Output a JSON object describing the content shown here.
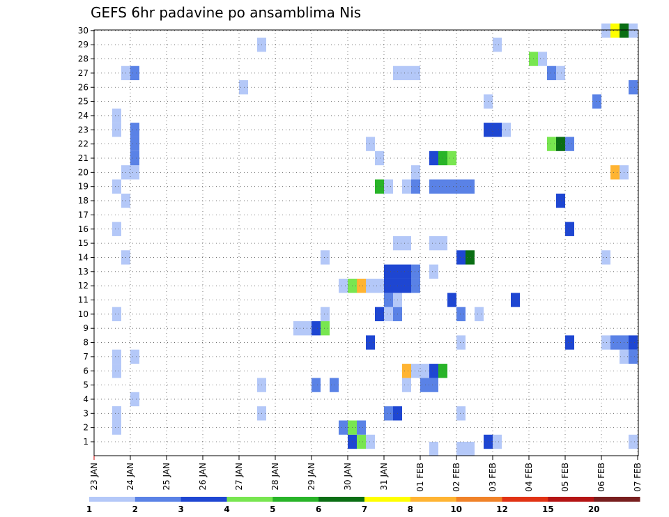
{
  "chart_data": {
    "type": "heatmap",
    "title": "GEFS 6hr padavine po ansamblima Nis",
    "xlabel": "",
    "ylabel": "",
    "x_ticks": [
      "23 JAN",
      "24 JAN",
      "25 JAN",
      "26 JAN",
      "27 JAN",
      "28 JAN",
      "29 JAN",
      "30 JAN",
      "31 JAN",
      "01 FEB",
      "02 FEB",
      "03 FEB",
      "04 FEB",
      "05 FEB",
      "06 FEB",
      "07 FEB"
    ],
    "y_ticks": [
      "1",
      "2",
      "3",
      "4",
      "5",
      "6",
      "7",
      "8",
      "9",
      "10",
      "11",
      "12",
      "13",
      "14",
      "15",
      "16",
      "17",
      "18",
      "19",
      "20",
      "21",
      "22",
      "23",
      "24",
      "25",
      "26",
      "27",
      "28",
      "29",
      "30"
    ],
    "ylim": [
      1,
      30
    ],
    "grid": true,
    "colorbar": {
      "labels": [
        "1",
        "2",
        "3",
        "4",
        "5",
        "6",
        "7",
        "8",
        "10",
        "12",
        "15",
        "20"
      ],
      "colors": [
        "#b4c8f8",
        "#5a82e6",
        "#1e46d2",
        "#78e650",
        "#28b428",
        "#0a6e14",
        "#ffff00",
        "#ffb432",
        "#f08228",
        "#e13214",
        "#b41414",
        "#781e1e"
      ]
    },
    "units_note": "x values in days after 23 JAN 00Z (6-hour steps); y = ensemble member; c = colour class index",
    "cells": [
      {
        "x": 0.625,
        "y": 2,
        "c": 0
      },
      {
        "x": 0.625,
        "y": 3,
        "c": 0
      },
      {
        "x": 0.625,
        "y": 3,
        "c": 0
      },
      {
        "x": 0.625,
        "y": 6,
        "c": 0
      },
      {
        "x": 0.625,
        "y": 7,
        "c": 0
      },
      {
        "x": 0.625,
        "y": 10,
        "c": 0
      },
      {
        "x": 0.625,
        "y": 16,
        "c": 0
      },
      {
        "x": 0.625,
        "y": 19,
        "c": 0
      },
      {
        "x": 0.625,
        "y": 23,
        "c": 0
      },
      {
        "x": 0.625,
        "y": 24,
        "c": 0
      },
      {
        "x": 0.875,
        "y": 14,
        "c": 0
      },
      {
        "x": 0.875,
        "y": 18,
        "c": 0
      },
      {
        "x": 0.875,
        "y": 20,
        "c": 0
      },
      {
        "x": 0.875,
        "y": 27,
        "c": 0
      },
      {
        "x": 1.125,
        "y": 4,
        "c": 0
      },
      {
        "x": 1.125,
        "y": 7,
        "c": 0
      },
      {
        "x": 1.125,
        "y": 20,
        "c": 0
      },
      {
        "x": 1.125,
        "y": 21,
        "c": 1
      },
      {
        "x": 1.125,
        "y": 22,
        "c": 1
      },
      {
        "x": 1.125,
        "y": 23,
        "c": 1
      },
      {
        "x": 1.125,
        "y": 27,
        "c": 1
      },
      {
        "x": 4.125,
        "y": 26,
        "c": 0
      },
      {
        "x": 4.625,
        "y": 3,
        "c": 0
      },
      {
        "x": 4.625,
        "y": 5,
        "c": 0
      },
      {
        "x": 4.625,
        "y": 29,
        "c": 0
      },
      {
        "x": 5.625,
        "y": 9,
        "c": 0
      },
      {
        "x": 5.875,
        "y": 9,
        "c": 0
      },
      {
        "x": 6.125,
        "y": 5,
        "c": 1
      },
      {
        "x": 6.125,
        "y": 9,
        "c": 2
      },
      {
        "x": 6.375,
        "y": 9,
        "c": 3
      },
      {
        "x": 6.375,
        "y": 10,
        "c": 0
      },
      {
        "x": 6.375,
        "y": 14,
        "c": 0
      },
      {
        "x": 6.625,
        "y": 5,
        "c": 1
      },
      {
        "x": 6.875,
        "y": 2,
        "c": 1
      },
      {
        "x": 6.875,
        "y": 12,
        "c": 0
      },
      {
        "x": 7.125,
        "y": 1,
        "c": 2
      },
      {
        "x": 7.125,
        "y": 2,
        "c": 3
      },
      {
        "x": 7.125,
        "y": 12,
        "c": 3
      },
      {
        "x": 7.375,
        "y": 1,
        "c": 3
      },
      {
        "x": 7.375,
        "y": 2,
        "c": 1
      },
      {
        "x": 7.375,
        "y": 12,
        "c": 7
      },
      {
        "x": 7.625,
        "y": 1,
        "c": 0
      },
      {
        "x": 7.625,
        "y": 8,
        "c": 2
      },
      {
        "x": 7.625,
        "y": 12,
        "c": 0
      },
      {
        "x": 7.625,
        "y": 22,
        "c": 0
      },
      {
        "x": 7.875,
        "y": 10,
        "c": 2
      },
      {
        "x": 7.875,
        "y": 12,
        "c": 0
      },
      {
        "x": 7.875,
        "y": 19,
        "c": 4
      },
      {
        "x": 7.875,
        "y": 21,
        "c": 0
      },
      {
        "x": 8.125,
        "y": 3,
        "c": 1
      },
      {
        "x": 8.125,
        "y": 10,
        "c": 0
      },
      {
        "x": 8.125,
        "y": 11,
        "c": 1
      },
      {
        "x": 8.125,
        "y": 12,
        "c": 2
      },
      {
        "x": 8.125,
        "y": 13,
        "c": 2
      },
      {
        "x": 8.125,
        "y": 19,
        "c": 0
      },
      {
        "x": 8.375,
        "y": 3,
        "c": 2
      },
      {
        "x": 8.375,
        "y": 10,
        "c": 1
      },
      {
        "x": 8.375,
        "y": 11,
        "c": 0
      },
      {
        "x": 8.375,
        "y": 12,
        "c": 2
      },
      {
        "x": 8.375,
        "y": 13,
        "c": 2
      },
      {
        "x": 8.375,
        "y": 15,
        "c": 0
      },
      {
        "x": 8.375,
        "y": 27,
        "c": 0
      },
      {
        "x": 8.625,
        "y": 5,
        "c": 0
      },
      {
        "x": 8.625,
        "y": 6,
        "c": 7
      },
      {
        "x": 8.625,
        "y": 12,
        "c": 2
      },
      {
        "x": 8.625,
        "y": 13,
        "c": 2
      },
      {
        "x": 8.625,
        "y": 15,
        "c": 0
      },
      {
        "x": 8.625,
        "y": 19,
        "c": 0
      },
      {
        "x": 8.625,
        "y": 27,
        "c": 0
      },
      {
        "x": 8.875,
        "y": 6,
        "c": 0
      },
      {
        "x": 8.875,
        "y": 12,
        "c": 1
      },
      {
        "x": 8.875,
        "y": 13,
        "c": 1
      },
      {
        "x": 8.875,
        "y": 19,
        "c": 1
      },
      {
        "x": 8.875,
        "y": 20,
        "c": 0
      },
      {
        "x": 8.875,
        "y": 27,
        "c": 0
      },
      {
        "x": 9.125,
        "y": 5,
        "c": 1
      },
      {
        "x": 9.125,
        "y": 6,
        "c": 0
      },
      {
        "x": 9.375,
        "y": 0.5,
        "c": 0
      },
      {
        "x": 9.375,
        "y": 5,
        "c": 1
      },
      {
        "x": 9.375,
        "y": 6,
        "c": 2
      },
      {
        "x": 9.375,
        "y": 13,
        "c": 0
      },
      {
        "x": 9.375,
        "y": 15,
        "c": 0
      },
      {
        "x": 9.375,
        "y": 19,
        "c": 1
      },
      {
        "x": 9.375,
        "y": 21,
        "c": 2
      },
      {
        "x": 9.625,
        "y": 6,
        "c": 4
      },
      {
        "x": 9.625,
        "y": 15,
        "c": 0
      },
      {
        "x": 9.625,
        "y": 19,
        "c": 1
      },
      {
        "x": 9.625,
        "y": 21,
        "c": 4
      },
      {
        "x": 9.875,
        "y": 11,
        "c": 2
      },
      {
        "x": 9.875,
        "y": 19,
        "c": 1
      },
      {
        "x": 9.875,
        "y": 21,
        "c": 3
      },
      {
        "x": 10.125,
        "y": 0.5,
        "c": 0
      },
      {
        "x": 10.125,
        "y": 3,
        "c": 0
      },
      {
        "x": 10.125,
        "y": 8,
        "c": 0
      },
      {
        "x": 10.125,
        "y": 10,
        "c": 1
      },
      {
        "x": 10.125,
        "y": 14,
        "c": 2
      },
      {
        "x": 10.125,
        "y": 19,
        "c": 1
      },
      {
        "x": 10.375,
        "y": 0.5,
        "c": 0
      },
      {
        "x": 10.375,
        "y": 14,
        "c": 5
      },
      {
        "x": 10.375,
        "y": 19,
        "c": 1
      },
      {
        "x": 10.625,
        "y": 10,
        "c": 0
      },
      {
        "x": 10.875,
        "y": 1,
        "c": 2
      },
      {
        "x": 10.875,
        "y": 23,
        "c": 2
      },
      {
        "x": 10.875,
        "y": 25,
        "c": 0
      },
      {
        "x": 11.125,
        "y": 1,
        "c": 0
      },
      {
        "x": 11.125,
        "y": 23,
        "c": 2
      },
      {
        "x": 11.125,
        "y": 29,
        "c": 0
      },
      {
        "x": 11.375,
        "y": 23,
        "c": 0
      },
      {
        "x": 11.625,
        "y": 11,
        "c": 2
      },
      {
        "x": 12.125,
        "y": 28,
        "c": 3
      },
      {
        "x": 12.375,
        "y": 28,
        "c": 0
      },
      {
        "x": 12.625,
        "y": 22,
        "c": 3
      },
      {
        "x": 12.625,
        "y": 27,
        "c": 1
      },
      {
        "x": 12.875,
        "y": 18,
        "c": 2
      },
      {
        "x": 12.875,
        "y": 22,
        "c": 5
      },
      {
        "x": 12.875,
        "y": 27,
        "c": 0
      },
      {
        "x": 13.125,
        "y": 8,
        "c": 2
      },
      {
        "x": 13.125,
        "y": 16,
        "c": 2
      },
      {
        "x": 13.125,
        "y": 22,
        "c": 1
      },
      {
        "x": 13.875,
        "y": 25,
        "c": 1
      },
      {
        "x": 14.125,
        "y": 8,
        "c": 0
      },
      {
        "x": 14.125,
        "y": 14,
        "c": 0
      },
      {
        "x": 14.125,
        "y": 30,
        "c": 0
      },
      {
        "x": 14.375,
        "y": 8,
        "c": 1
      },
      {
        "x": 14.375,
        "y": 20,
        "c": 7
      },
      {
        "x": 14.375,
        "y": 30,
        "c": 6
      },
      {
        "x": 14.625,
        "y": 7,
        "c": 0
      },
      {
        "x": 14.625,
        "y": 8,
        "c": 1
      },
      {
        "x": 14.625,
        "y": 20,
        "c": 0
      },
      {
        "x": 14.625,
        "y": 30,
        "c": 5
      },
      {
        "x": 14.875,
        "y": 7,
        "c": 1
      },
      {
        "x": 14.875,
        "y": 8,
        "c": 2
      },
      {
        "x": 14.875,
        "y": 26,
        "c": 1
      },
      {
        "x": 14.875,
        "y": 1,
        "c": 0
      },
      {
        "x": 14.875,
        "y": 30,
        "c": 0
      }
    ]
  }
}
